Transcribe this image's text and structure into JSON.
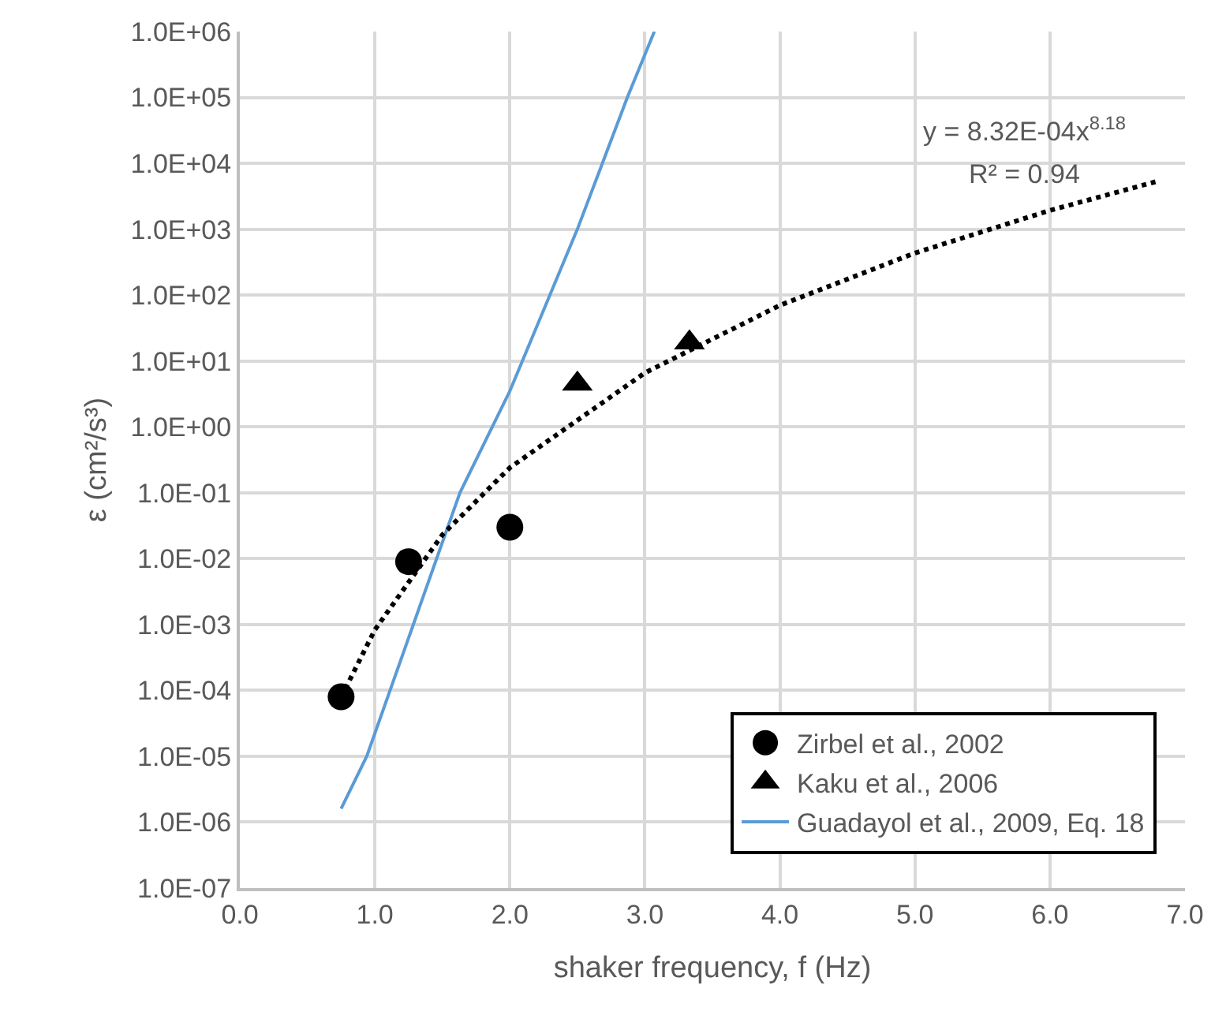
{
  "chart_data": {
    "type": "scatter",
    "xlabel": "shaker frequency, f (Hz)",
    "ylabel": "ε (cm²/s³)",
    "xlim": [
      0,
      7
    ],
    "xticks": [
      {
        "value": 0,
        "label": "0.0"
      },
      {
        "value": 1,
        "label": "1.0"
      },
      {
        "value": 2,
        "label": "2.0"
      },
      {
        "value": 3,
        "label": "3.0"
      },
      {
        "value": 4,
        "label": "4.0"
      },
      {
        "value": 5,
        "label": "5.0"
      },
      {
        "value": 6,
        "label": "6.0"
      },
      {
        "value": 7,
        "label": "7.0"
      }
    ],
    "ylim": [
      1e-07,
      1000000.0
    ],
    "yticks": [
      {
        "value": 1e-07,
        "label": "1.0E-07"
      },
      {
        "value": 1e-06,
        "label": "1.0E-06"
      },
      {
        "value": 1e-05,
        "label": "1.0E-05"
      },
      {
        "value": 0.0001,
        "label": "1.0E-04"
      },
      {
        "value": 0.001,
        "label": "1.0E-03"
      },
      {
        "value": 0.01,
        "label": "1.0E-02"
      },
      {
        "value": 0.1,
        "label": "1.0E-01"
      },
      {
        "value": 1,
        "label": "1.0E+00"
      },
      {
        "value": 10,
        "label": "1.0E+01"
      },
      {
        "value": 100,
        "label": "1.0E+02"
      },
      {
        "value": 1000,
        "label": "1.0E+03"
      },
      {
        "value": 10000,
        "label": "1.0E+04"
      },
      {
        "value": 100000,
        "label": "1.0E+05"
      },
      {
        "value": 1000000,
        "label": "1.0E+06"
      }
    ],
    "log": "y",
    "grid": true,
    "legend": "bottom right",
    "annotations": [
      "y = 8.32E-04x$^{8.18}$",
      "R² = 0.94"
    ],
    "series": [
      {
        "name": "Zirbel et al., 2002",
        "marker": "circle",
        "color": "#000000",
        "x": [
          0.75,
          1.25,
          2.0
        ],
        "values": [
          8e-05,
          0.009,
          0.03
        ]
      },
      {
        "name": "Kaku et al., 2006",
        "marker": "triangle",
        "color": "#000000",
        "x": [
          2.5,
          3.33
        ],
        "values": [
          4.5,
          19
        ]
      },
      {
        "name": "Guadayol et al., 2009, Eq. 18",
        "type": "line",
        "marker": "none",
        "line_style": "solid",
        "color": "#5b9bd5",
        "x": [
          0.75,
          0.94,
          1.63,
          2.0,
          2.5,
          2.87,
          3.07
        ],
        "values": [
          1.6e-06,
          1e-05,
          0.1,
          3.5,
          1000,
          100000,
          1000000
        ]
      },
      {
        "type": "line",
        "marker": "none",
        "line_style": "dotted",
        "color": "#000000",
        "x": [
          0.75,
          1.0,
          1.5,
          2.0,
          3.0,
          4.0,
          5.0,
          6.0,
          6.8
        ],
        "values": [
          7.9e-05,
          0.00083,
          0.023,
          0.24,
          6.6,
          70,
          435,
          1930,
          5370
        ]
      }
    ]
  }
}
